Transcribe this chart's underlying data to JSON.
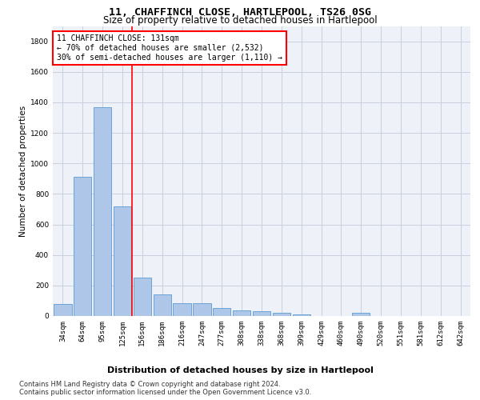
{
  "title": "11, CHAFFINCH CLOSE, HARTLEPOOL, TS26 0SG",
  "subtitle": "Size of property relative to detached houses in Hartlepool",
  "xlabel": "Distribution of detached houses by size in Hartlepool",
  "ylabel": "Number of detached properties",
  "categories": [
    "34sqm",
    "64sqm",
    "95sqm",
    "125sqm",
    "156sqm",
    "186sqm",
    "216sqm",
    "247sqm",
    "277sqm",
    "308sqm",
    "338sqm",
    "368sqm",
    "399sqm",
    "429sqm",
    "460sqm",
    "490sqm",
    "520sqm",
    "551sqm",
    "581sqm",
    "612sqm",
    "642sqm"
  ],
  "values": [
    80,
    910,
    1370,
    720,
    250,
    140,
    85,
    85,
    50,
    35,
    30,
    20,
    10,
    0,
    0,
    20,
    0,
    0,
    0,
    0,
    0
  ],
  "bar_color": "#aec6e8",
  "bar_edge_color": "#5b9bd5",
  "vline_pos": 3.5,
  "vline_color": "red",
  "annotation_text": "11 CHAFFINCH CLOSE: 131sqm\n← 70% of detached houses are smaller (2,532)\n30% of semi-detached houses are larger (1,110) →",
  "ylim": [
    0,
    1900
  ],
  "yticks": [
    0,
    200,
    400,
    600,
    800,
    1000,
    1200,
    1400,
    1600,
    1800
  ],
  "footer_text": "Contains HM Land Registry data © Crown copyright and database right 2024.\nContains public sector information licensed under the Open Government Licence v3.0.",
  "bg_color": "#eef2f8",
  "grid_color": "#c8d0de",
  "title_fontsize": 9.5,
  "subtitle_fontsize": 8.5,
  "xlabel_fontsize": 8,
  "ylabel_fontsize": 7.5,
  "tick_fontsize": 6.5,
  "annotation_fontsize": 7,
  "footer_fontsize": 6
}
